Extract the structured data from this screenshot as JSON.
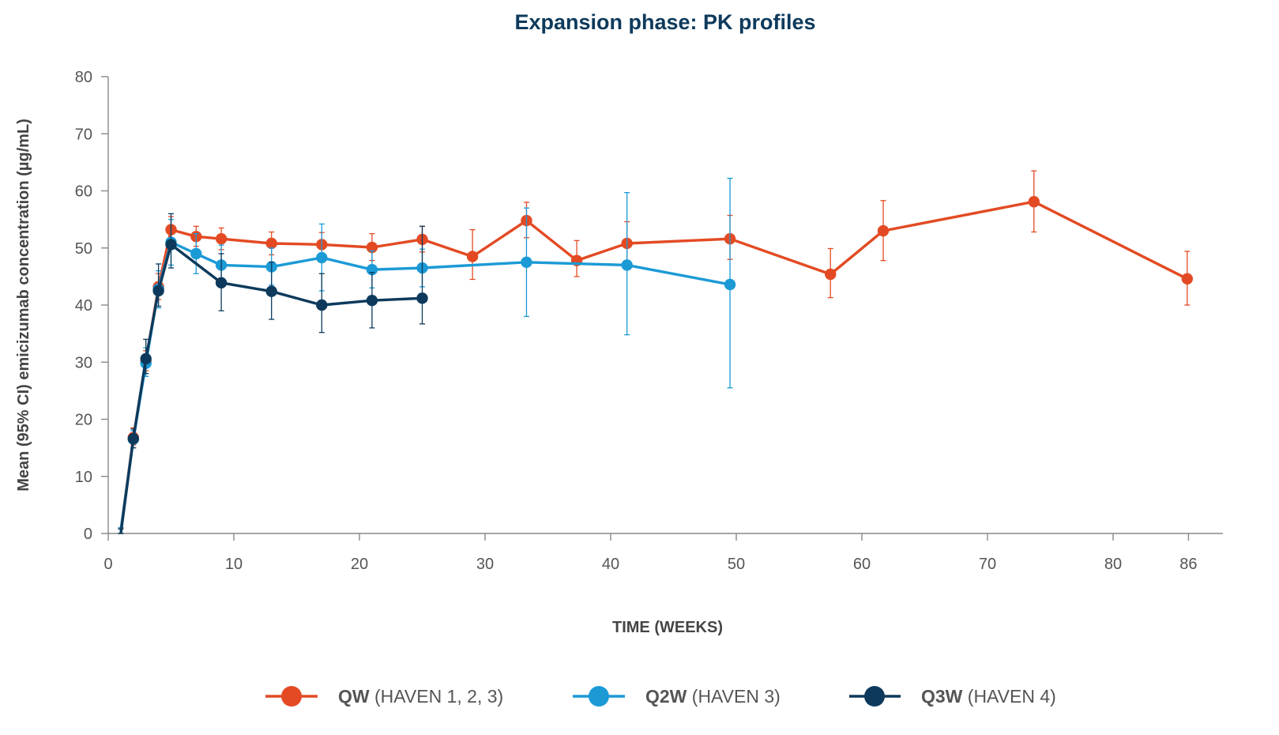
{
  "chart_data": {
    "type": "line",
    "title": "Expansion phase: PK profiles",
    "xlabel": "TIME (WEEKS)",
    "ylabel": "Mean (95% CI) emicizumab concentration (µg/mL)",
    "xlim": [
      0,
      89
    ],
    "ylim": [
      0,
      80
    ],
    "x_ticks": [
      0,
      10,
      20,
      30,
      40,
      50,
      60,
      70,
      80,
      86
    ],
    "y_ticks": [
      0,
      10,
      20,
      30,
      40,
      50,
      60,
      70,
      80
    ],
    "series": [
      {
        "name": "QW",
        "legend_bold": "QW",
        "legend_rest": " (HAVEN 1, 2, 3)",
        "color": "#e34a23",
        "points": [
          {
            "x": 1,
            "y": 0.5,
            "lo": 0,
            "hi": 1
          },
          {
            "x": 2,
            "y": 16.8,
            "lo": 15.5,
            "hi": 18.5
          },
          {
            "x": 3,
            "y": 30.2,
            "lo": 28.5,
            "hi": 32
          },
          {
            "x": 4,
            "y": 43.2,
            "lo": 41,
            "hi": 45.5
          },
          {
            "x": 5,
            "y": 53.2,
            "lo": 51,
            "hi": 55.5
          },
          {
            "x": 7,
            "y": 52,
            "lo": 50.3,
            "hi": 53.8
          },
          {
            "x": 9,
            "y": 51.6,
            "lo": 49.7,
            "hi": 53.5
          },
          {
            "x": 13,
            "y": 50.8,
            "lo": 48.8,
            "hi": 52.8
          },
          {
            "x": 17,
            "y": 50.6,
            "lo": 48.5,
            "hi": 52.7
          },
          {
            "x": 21,
            "y": 50.1,
            "lo": 47.8,
            "hi": 52.5
          },
          {
            "x": 25,
            "y": 51.5,
            "lo": 49.3,
            "hi": 53.8
          },
          {
            "x": 29,
            "y": 48.5,
            "lo": 44.5,
            "hi": 53.2
          },
          {
            "x": 33.3,
            "y": 54.8,
            "lo": 51.8,
            "hi": 58
          },
          {
            "x": 37.3,
            "y": 47.8,
            "lo": 45,
            "hi": 51.3
          },
          {
            "x": 41.3,
            "y": 50.8,
            "lo": 47,
            "hi": 54.6
          },
          {
            "x": 49.5,
            "y": 51.6,
            "lo": 48,
            "hi": 55.7
          },
          {
            "x": 57.5,
            "y": 45.4,
            "lo": 41.3,
            "hi": 49.9
          },
          {
            "x": 61.7,
            "y": 53,
            "lo": 47.8,
            "hi": 58.3
          },
          {
            "x": 73.7,
            "y": 58.1,
            "lo": 52.8,
            "hi": 63.5
          },
          {
            "x": 85.9,
            "y": 44.6,
            "lo": 40,
            "hi": 49.4
          }
        ]
      },
      {
        "name": "Q2W",
        "legend_bold": "Q2W",
        "legend_rest": " (HAVEN 3)",
        "color": "#1b9ad6",
        "points": [
          {
            "x": 1,
            "y": 0.5,
            "lo": 0,
            "hi": 1
          },
          {
            "x": 2,
            "y": 16.5,
            "lo": 15,
            "hi": 18
          },
          {
            "x": 3,
            "y": 29.8,
            "lo": 27.5,
            "hi": 32.5
          },
          {
            "x": 4,
            "y": 42.8,
            "lo": 39.5,
            "hi": 46
          },
          {
            "x": 5,
            "y": 51,
            "lo": 47,
            "hi": 55
          },
          {
            "x": 7,
            "y": 49,
            "lo": 45.5,
            "hi": 52.5
          },
          {
            "x": 9,
            "y": 47,
            "lo": 43.5,
            "hi": 50.5
          },
          {
            "x": 13,
            "y": 46.7,
            "lo": 43.5,
            "hi": 50
          },
          {
            "x": 17,
            "y": 48.3,
            "lo": 42.5,
            "hi": 54.2
          },
          {
            "x": 21,
            "y": 46.2,
            "lo": 43,
            "hi": 49.5
          },
          {
            "x": 25,
            "y": 46.5,
            "lo": 43.2,
            "hi": 49.8
          },
          {
            "x": 33.3,
            "y": 47.5,
            "lo": 38,
            "hi": 57
          },
          {
            "x": 41.3,
            "y": 47,
            "lo": 34.8,
            "hi": 59.7
          },
          {
            "x": 49.5,
            "y": 43.6,
            "lo": 25.5,
            "hi": 62.2
          }
        ]
      },
      {
        "name": "Q3W",
        "legend_bold": "Q3W",
        "legend_rest": " (HAVEN 4)",
        "color": "#0d3a5c",
        "points": [
          {
            "x": 1,
            "y": 0,
            "lo": 0,
            "hi": 0.8
          },
          {
            "x": 2,
            "y": 16.6,
            "lo": 15,
            "hi": 18.3
          },
          {
            "x": 3,
            "y": 30.6,
            "lo": 28,
            "hi": 34
          },
          {
            "x": 4,
            "y": 42.5,
            "lo": 39.8,
            "hi": 47.2
          },
          {
            "x": 5,
            "y": 50.6,
            "lo": 46.5,
            "hi": 56
          },
          {
            "x": 9,
            "y": 43.9,
            "lo": 39,
            "hi": 49
          },
          {
            "x": 13,
            "y": 42.4,
            "lo": 37.5,
            "hi": 47.5
          },
          {
            "x": 17,
            "y": 40,
            "lo": 35.2,
            "hi": 45.5
          },
          {
            "x": 21,
            "y": 40.8,
            "lo": 36,
            "hi": 45.7
          },
          {
            "x": 25,
            "y": 41.2,
            "lo": 36.7,
            "hi": 53.8
          }
        ]
      }
    ]
  }
}
